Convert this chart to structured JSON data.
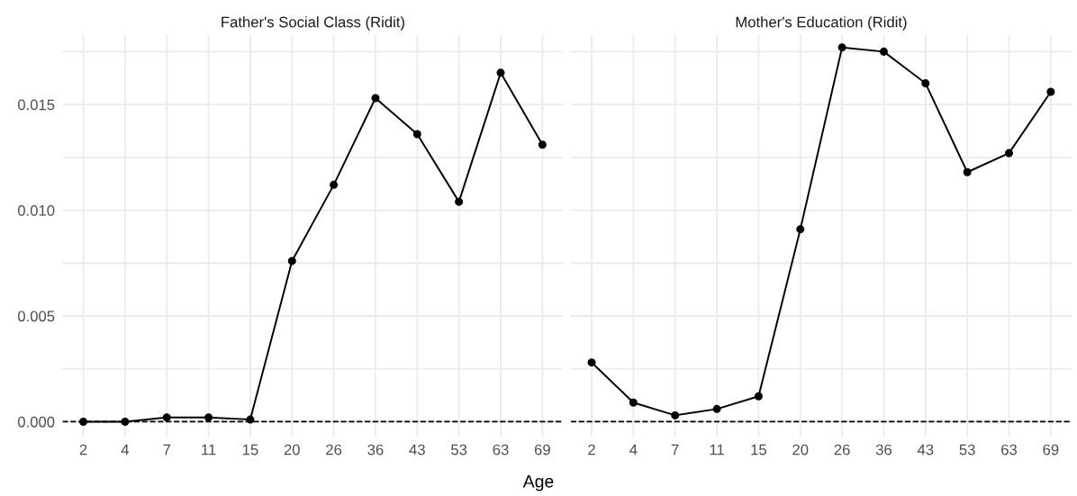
{
  "chart_data": [
    {
      "type": "line",
      "title": "Father's Social Class (Ridit)",
      "xlabel": "Age",
      "categories": [
        "2",
        "4",
        "7",
        "11",
        "15",
        "20",
        "26",
        "36",
        "43",
        "53",
        "63",
        "69"
      ],
      "series": [
        {
          "color": "#000000",
          "values": [
            0.0,
            0.0,
            0.0002,
            0.0002,
            0.0001,
            0.0076,
            0.0112,
            0.0153,
            0.0136,
            0.0104,
            0.0165,
            0.0131
          ]
        }
      ],
      "ylim": [
        -0.0007,
        0.0183
      ],
      "yticks": [
        {
          "value": 0,
          "label": "0.000"
        },
        {
          "value": 0.0025,
          "label": null
        },
        {
          "value": 0.005,
          "label": "0.005"
        },
        {
          "value": 0.0075,
          "label": null
        },
        {
          "value": 0.01,
          "label": "0.010"
        },
        {
          "value": 0.0125,
          "label": null
        },
        {
          "value": 0.015,
          "label": "0.015"
        },
        {
          "value": 0.0175,
          "label": null
        }
      ],
      "ref_lines": [
        {
          "axis": "y",
          "value": 0,
          "color": "#000000",
          "line_style": "dashed"
        }
      ],
      "grid": true,
      "marker": "circle",
      "line_style": "solid"
    },
    {
      "type": "line",
      "title": "Mother's Education (Ridit)",
      "categories": [
        "2",
        "4",
        "7",
        "11",
        "15",
        "20",
        "26",
        "36",
        "43",
        "53",
        "63",
        "69"
      ],
      "series": [
        {
          "color": "#000000",
          "values": [
            0.0028,
            0.0009,
            0.0003,
            0.0006,
            0.0012,
            0.0091,
            0.0177,
            0.0175,
            0.016,
            0.0118,
            0.0127,
            0.0156
          ]
        }
      ],
      "ylim": [
        -0.0007,
        0.0183
      ],
      "yticks": [
        {
          "value": 0,
          "label": null
        },
        {
          "value": 0.0025,
          "label": null
        },
        {
          "value": 0.005,
          "label": null
        },
        {
          "value": 0.0075,
          "label": null
        },
        {
          "value": 0.01,
          "label": null
        },
        {
          "value": 0.0125,
          "label": null
        },
        {
          "value": 0.015,
          "label": null
        },
        {
          "value": 0.0175,
          "label": null
        }
      ],
      "ref_lines": [
        {
          "axis": "y",
          "value": 0,
          "color": "#000000",
          "line_style": "dashed"
        }
      ],
      "grid": true,
      "marker": "circle",
      "line_style": "solid",
      "tick_labels": "x"
    }
  ]
}
